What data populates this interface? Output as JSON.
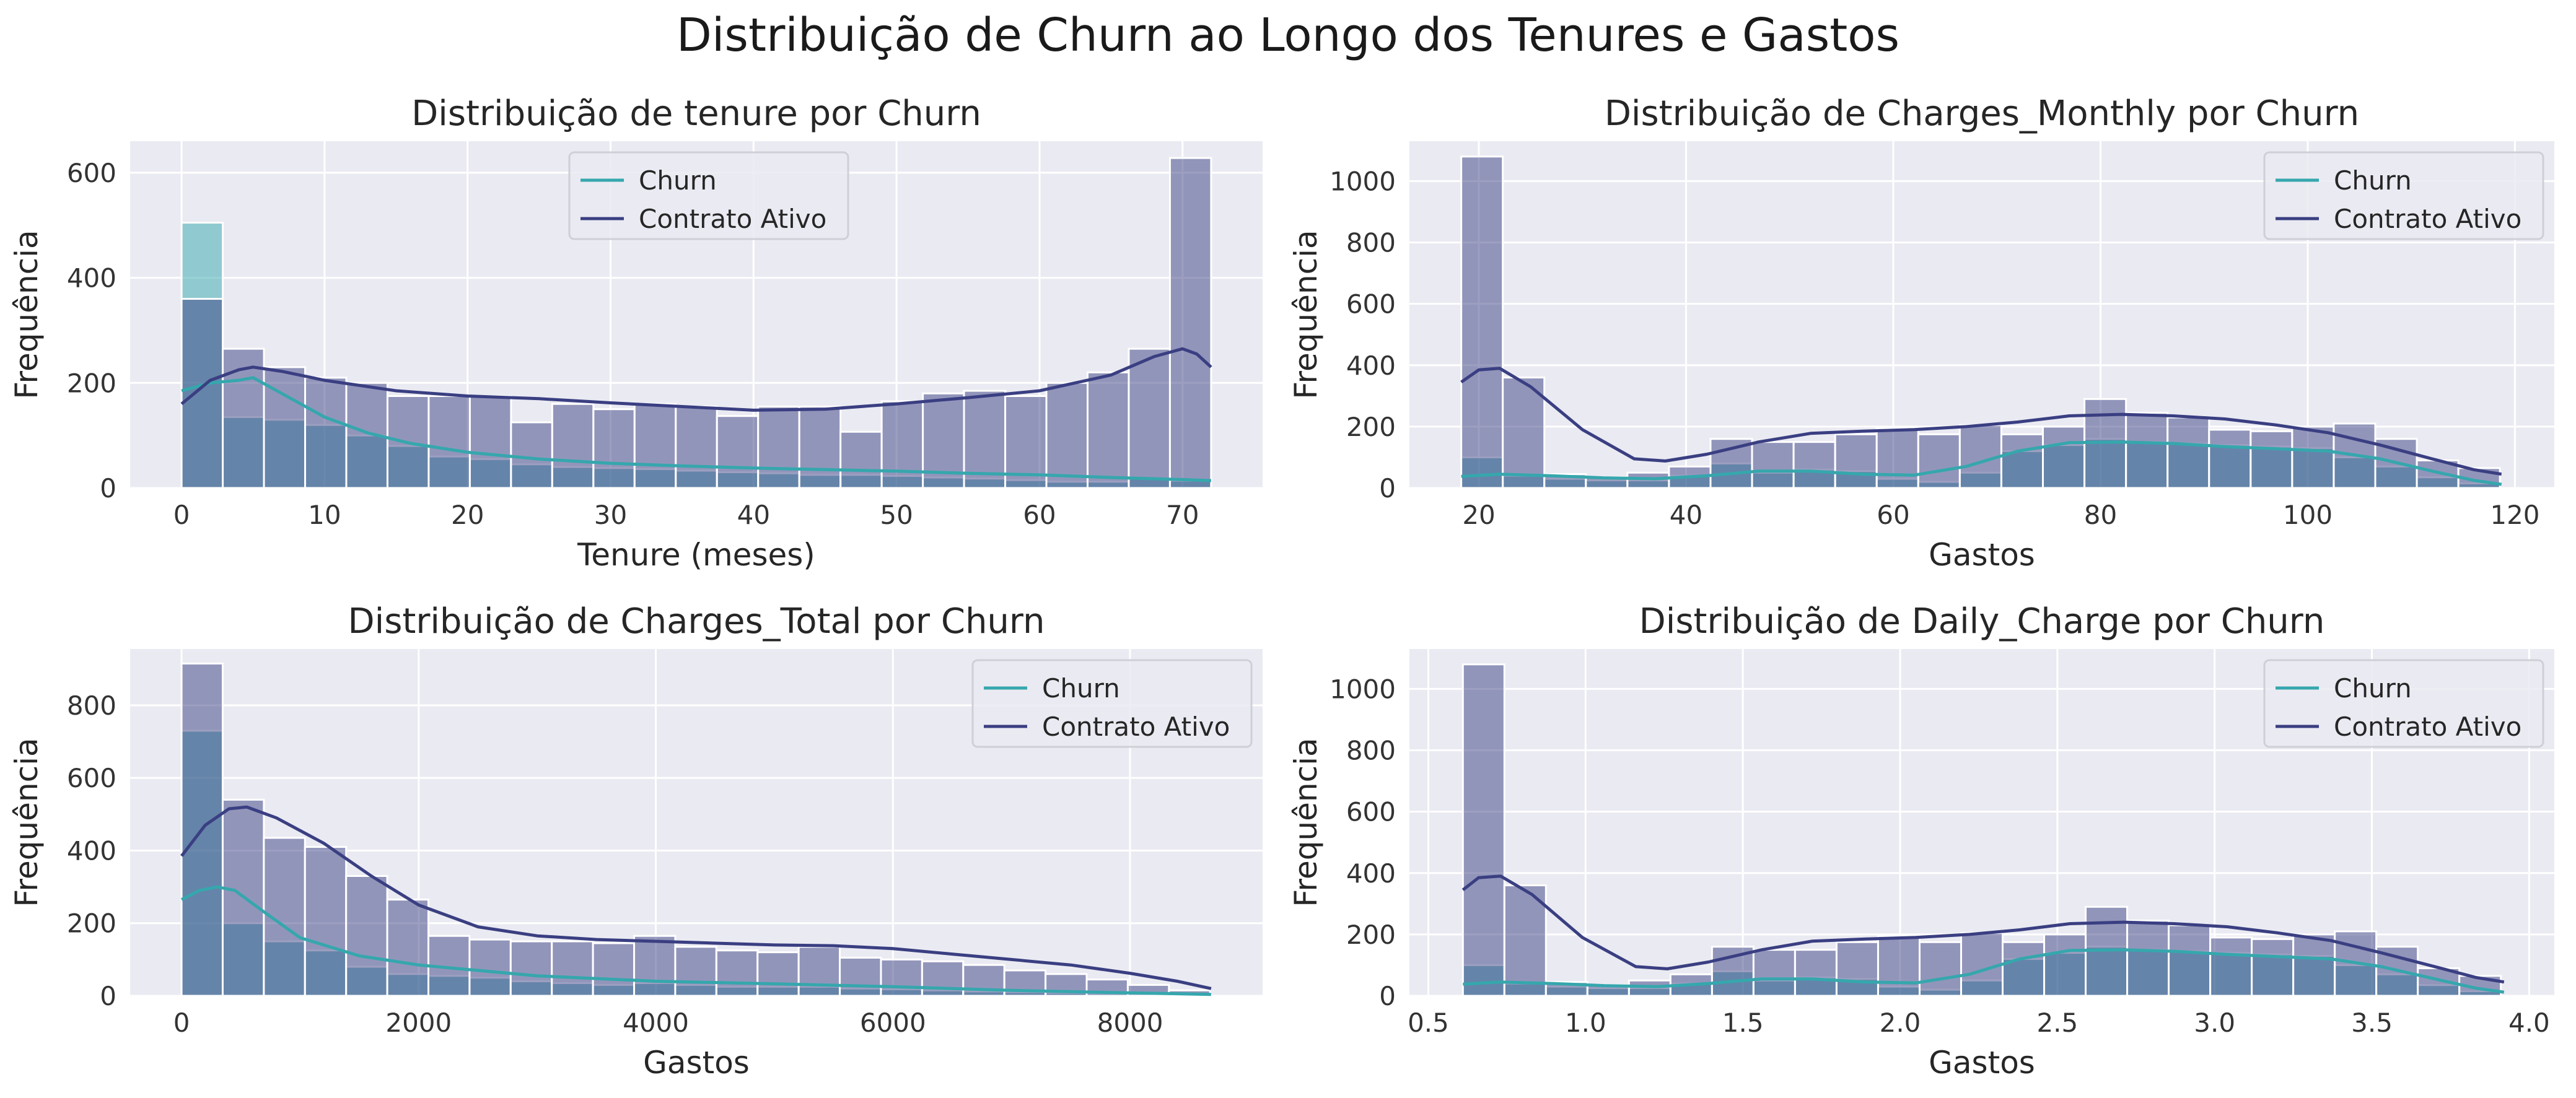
{
  "figure": {
    "suptitle": "Distribuição de Churn ao Longo dos Tenures e Gastos"
  },
  "colors": {
    "churn": "#35a7ad",
    "ativo": "#3a3f82",
    "background": "#eaeaf2",
    "grid": "#ffffff"
  },
  "legend": {
    "churn": "Churn",
    "ativo": "Contrato Ativo"
  },
  "chart_data": [
    {
      "type": "histogram",
      "title": "Distribuição de tenure por Churn",
      "xlabel": "Tenure (meses)",
      "ylabel": "Frequência",
      "xlim": [
        -3.6,
        75.6
      ],
      "ylim": [
        0,
        660
      ],
      "xticks": [
        0,
        10,
        20,
        30,
        40,
        50,
        60,
        70
      ],
      "yticks": [
        0,
        200,
        400,
        600
      ],
      "xtick_labels": [
        "0",
        "10",
        "20",
        "30",
        "40",
        "50",
        "60",
        "70"
      ],
      "ytick_labels": [
        "0",
        "200",
        "400",
        "600"
      ],
      "bin_start": 0,
      "bin_width": 2.88,
      "legend_position": "upper center",
      "series": [
        {
          "name": "Churn",
          "counts": [
            505,
            135,
            130,
            120,
            100,
            80,
            60,
            55,
            45,
            40,
            38,
            36,
            33,
            30,
            28,
            25,
            25,
            23,
            20,
            18,
            15,
            12,
            12,
            18,
            14
          ],
          "kde": [
            [
              0,
              185
            ],
            [
              2,
              200
            ],
            [
              4,
              205
            ],
            [
              5,
              210
            ],
            [
              7,
              180
            ],
            [
              10,
              135
            ],
            [
              13,
              105
            ],
            [
              16,
              85
            ],
            [
              20,
              68
            ],
            [
              25,
              55
            ],
            [
              30,
              47
            ],
            [
              35,
              42
            ],
            [
              40,
              38
            ],
            [
              45,
              35
            ],
            [
              50,
              32
            ],
            [
              55,
              28
            ],
            [
              60,
              25
            ],
            [
              65,
              20
            ],
            [
              70,
              16
            ],
            [
              72,
              14
            ]
          ]
        },
        {
          "name": "Contrato Ativo",
          "counts": [
            360,
            265,
            230,
            210,
            200,
            175,
            175,
            175,
            125,
            160,
            150,
            160,
            155,
            137,
            155,
            155,
            107,
            165,
            180,
            185,
            175,
            200,
            220,
            265,
            628
          ],
          "kde": [
            [
              0,
              160
            ],
            [
              2,
              205
            ],
            [
              4,
              225
            ],
            [
              5,
              230
            ],
            [
              7,
              222
            ],
            [
              10,
              205
            ],
            [
              15,
              185
            ],
            [
              20,
              175
            ],
            [
              25,
              170
            ],
            [
              30,
              162
            ],
            [
              35,
              155
            ],
            [
              40,
              148
            ],
            [
              45,
              150
            ],
            [
              50,
              160
            ],
            [
              55,
              172
            ],
            [
              60,
              185
            ],
            [
              65,
              215
            ],
            [
              68,
              250
            ],
            [
              70,
              265
            ],
            [
              71,
              255
            ],
            [
              72,
              230
            ]
          ]
        }
      ]
    },
    {
      "type": "histogram",
      "title": "Distribuição de Charges_Monthly por Churn",
      "xlabel": "Gastos",
      "ylabel": "Frequência",
      "xlim": [
        13.3,
        123.8
      ],
      "ylim": [
        0,
        1130
      ],
      "xticks": [
        20,
        40,
        60,
        80,
        100,
        120
      ],
      "yticks": [
        0,
        200,
        400,
        600,
        800,
        1000
      ],
      "xtick_labels": [
        "20",
        "40",
        "60",
        "80",
        "100",
        "120"
      ],
      "ytick_labels": [
        "0",
        "200",
        "400",
        "600",
        "800",
        "1000"
      ],
      "bin_start": 18.3,
      "bin_width": 4.01,
      "legend_position": "upper right",
      "series": [
        {
          "name": "Churn",
          "counts": [
            100,
            40,
            30,
            25,
            25,
            40,
            80,
            50,
            60,
            55,
            30,
            20,
            50,
            120,
            140,
            160,
            150,
            145,
            140,
            135,
            130,
            100,
            70,
            35,
            15
          ],
          "kde": [
            [
              18.3,
              38
            ],
            [
              22,
              45
            ],
            [
              27,
              40
            ],
            [
              32,
              33
            ],
            [
              37,
              30
            ],
            [
              42,
              40
            ],
            [
              47,
              55
            ],
            [
              52,
              55
            ],
            [
              57,
              45
            ],
            [
              62,
              42
            ],
            [
              67,
              70
            ],
            [
              72,
              120
            ],
            [
              77,
              148
            ],
            [
              82,
              150
            ],
            [
              87,
              145
            ],
            [
              92,
              135
            ],
            [
              97,
              128
            ],
            [
              102,
              120
            ],
            [
              107,
              95
            ],
            [
              112,
              55
            ],
            [
              116,
              25
            ],
            [
              118.7,
              12
            ]
          ]
        },
        {
          "name": "Contrato Ativo",
          "counts": [
            1080,
            360,
            45,
            35,
            50,
            70,
            160,
            150,
            150,
            175,
            195,
            175,
            205,
            175,
            200,
            290,
            245,
            230,
            190,
            185,
            200,
            210,
            160,
            90,
            65
          ],
          "kde": [
            [
              18.3,
              345
            ],
            [
              20,
              385
            ],
            [
              22,
              390
            ],
            [
              25,
              330
            ],
            [
              30,
              190
            ],
            [
              35,
              95
            ],
            [
              38,
              88
            ],
            [
              42,
              110
            ],
            [
              47,
              150
            ],
            [
              52,
              178
            ],
            [
              57,
              185
            ],
            [
              62,
              190
            ],
            [
              67,
              200
            ],
            [
              72,
              215
            ],
            [
              77,
              235
            ],
            [
              82,
              240
            ],
            [
              87,
              235
            ],
            [
              92,
              225
            ],
            [
              97,
              205
            ],
            [
              102,
              180
            ],
            [
              107,
              140
            ],
            [
              112,
              95
            ],
            [
              116,
              60
            ],
            [
              118.7,
              45
            ]
          ]
        }
      ]
    },
    {
      "type": "histogram",
      "title": "Distribuição de Charges_Total por Churn",
      "xlabel": "Gastos",
      "ylabel": "Frequência",
      "xlim": [
        -434,
        9118
      ],
      "ylim": [
        0,
        955
      ],
      "xticks": [
        0,
        2000,
        4000,
        6000,
        8000
      ],
      "yticks": [
        0,
        200,
        400,
        600,
        800
      ],
      "xtick_labels": [
        "0",
        "2000",
        "4000",
        "6000",
        "8000"
      ],
      "ytick_labels": [
        "0",
        "200",
        "400",
        "600",
        "800"
      ],
      "bin_start": 0,
      "bin_width": 347,
      "legend_position": "upper right",
      "series": [
        {
          "name": "Churn",
          "counts": [
            730,
            200,
            150,
            125,
            80,
            60,
            55,
            50,
            40,
            35,
            30,
            35,
            30,
            25,
            25,
            25,
            20,
            18,
            15,
            12,
            10,
            8,
            6,
            5,
            3
          ],
          "kde": [
            [
              0,
              265
            ],
            [
              150,
              290
            ],
            [
              300,
              300
            ],
            [
              450,
              290
            ],
            [
              700,
              230
            ],
            [
              1000,
              160
            ],
            [
              1500,
              110
            ],
            [
              2000,
              85
            ],
            [
              2500,
              70
            ],
            [
              3000,
              55
            ],
            [
              4000,
              40
            ],
            [
              5000,
              33
            ],
            [
              6000,
              25
            ],
            [
              7000,
              15
            ],
            [
              8000,
              8
            ],
            [
              8684,
              4
            ]
          ]
        },
        {
          "name": "Contrato Ativo",
          "counts": [
            915,
            540,
            435,
            410,
            330,
            265,
            165,
            155,
            150,
            150,
            145,
            165,
            135,
            125,
            120,
            135,
            105,
            100,
            95,
            85,
            70,
            60,
            45,
            30,
            15
          ],
          "kde": [
            [
              0,
              385
            ],
            [
              200,
              470
            ],
            [
              400,
              515
            ],
            [
              550,
              520
            ],
            [
              800,
              490
            ],
            [
              1200,
              420
            ],
            [
              1600,
              330
            ],
            [
              2000,
              250
            ],
            [
              2500,
              190
            ],
            [
              3000,
              165
            ],
            [
              3500,
              155
            ],
            [
              4000,
              150
            ],
            [
              4500,
              145
            ],
            [
              5000,
              140
            ],
            [
              5500,
              138
            ],
            [
              6000,
              130
            ],
            [
              6500,
              115
            ],
            [
              7000,
              100
            ],
            [
              7500,
              85
            ],
            [
              8000,
              62
            ],
            [
              8400,
              40
            ],
            [
              8684,
              20
            ]
          ]
        }
      ]
    },
    {
      "type": "histogram",
      "title": "Distribuição de Daily_Charge por Churn",
      "xlabel": "Gastos",
      "ylabel": "Frequência",
      "xlim": [
        0.44,
        4.08
      ],
      "ylim": [
        0,
        1130
      ],
      "xticks": [
        0.5,
        1.0,
        1.5,
        2.0,
        2.5,
        3.0,
        3.5,
        4.0
      ],
      "yticks": [
        0,
        200,
        400,
        600,
        800,
        1000
      ],
      "xtick_labels": [
        "0.5",
        "1.0",
        "1.5",
        "2.0",
        "2.5",
        "3.0",
        "3.5",
        "4.0"
      ],
      "ytick_labels": [
        "0",
        "200",
        "400",
        "600",
        "800",
        "1000"
      ],
      "bin_start": 0.61,
      "bin_width": 0.132,
      "legend_position": "upper right",
      "series": [
        {
          "name": "Churn",
          "counts": [
            100,
            40,
            30,
            25,
            25,
            40,
            80,
            50,
            60,
            55,
            30,
            20,
            50,
            120,
            140,
            160,
            150,
            145,
            140,
            135,
            130,
            100,
            70,
            35,
            15
          ],
          "kde": [
            [
              0.61,
              38
            ],
            [
              0.73,
              45
            ],
            [
              0.9,
              40
            ],
            [
              1.06,
              33
            ],
            [
              1.23,
              30
            ],
            [
              1.39,
              40
            ],
            [
              1.56,
              55
            ],
            [
              1.72,
              55
            ],
            [
              1.89,
              45
            ],
            [
              2.05,
              42
            ],
            [
              2.22,
              70
            ],
            [
              2.38,
              120
            ],
            [
              2.54,
              148
            ],
            [
              2.71,
              150
            ],
            [
              2.87,
              145
            ],
            [
              3.04,
              135
            ],
            [
              3.2,
              128
            ],
            [
              3.37,
              120
            ],
            [
              3.53,
              95
            ],
            [
              3.7,
              55
            ],
            [
              3.83,
              25
            ],
            [
              3.92,
              12
            ]
          ]
        },
        {
          "name": "Contrato Ativo",
          "counts": [
            1080,
            360,
            45,
            35,
            50,
            70,
            160,
            150,
            150,
            175,
            195,
            175,
            205,
            175,
            200,
            290,
            245,
            230,
            190,
            185,
            200,
            210,
            160,
            90,
            65
          ],
          "kde": [
            [
              0.61,
              345
            ],
            [
              0.66,
              385
            ],
            [
              0.73,
              390
            ],
            [
              0.83,
              330
            ],
            [
              0.99,
              190
            ],
            [
              1.16,
              95
            ],
            [
              1.26,
              88
            ],
            [
              1.39,
              110
            ],
            [
              1.56,
              150
            ],
            [
              1.72,
              178
            ],
            [
              1.89,
              185
            ],
            [
              2.05,
              190
            ],
            [
              2.22,
              200
            ],
            [
              2.38,
              215
            ],
            [
              2.54,
              235
            ],
            [
              2.71,
              240
            ],
            [
              2.87,
              235
            ],
            [
              3.04,
              225
            ],
            [
              3.2,
              205
            ],
            [
              3.37,
              180
            ],
            [
              3.53,
              140
            ],
            [
              3.7,
              95
            ],
            [
              3.83,
              60
            ],
            [
              3.92,
              45
            ]
          ]
        }
      ]
    }
  ]
}
